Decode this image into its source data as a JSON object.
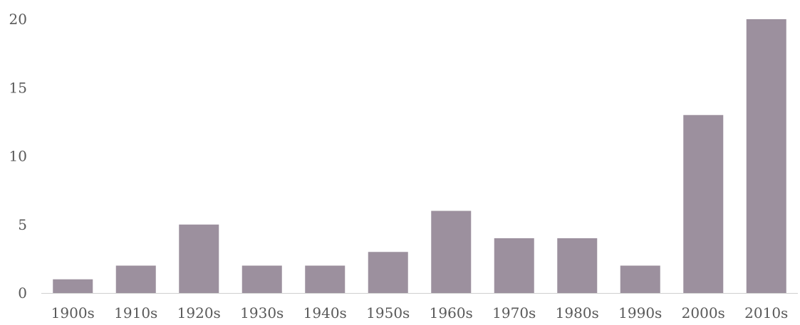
{
  "chart_data": {
    "type": "bar",
    "categories": [
      "1900s",
      "1910s",
      "1920s",
      "1930s",
      "1940s",
      "1950s",
      "1960s",
      "1970s",
      "1980s",
      "1990s",
      "2000s",
      "2010s"
    ],
    "values": [
      1,
      2,
      5,
      2,
      2,
      3,
      6,
      4,
      4,
      2,
      13,
      20
    ],
    "ylim": [
      0,
      20
    ],
    "yticks": [
      0,
      5,
      10,
      15,
      20
    ],
    "grid": false,
    "legend": "none",
    "colors": {
      "bar": "#9c909e",
      "axis": "#d0d0d0",
      "text": "#595959"
    }
  }
}
